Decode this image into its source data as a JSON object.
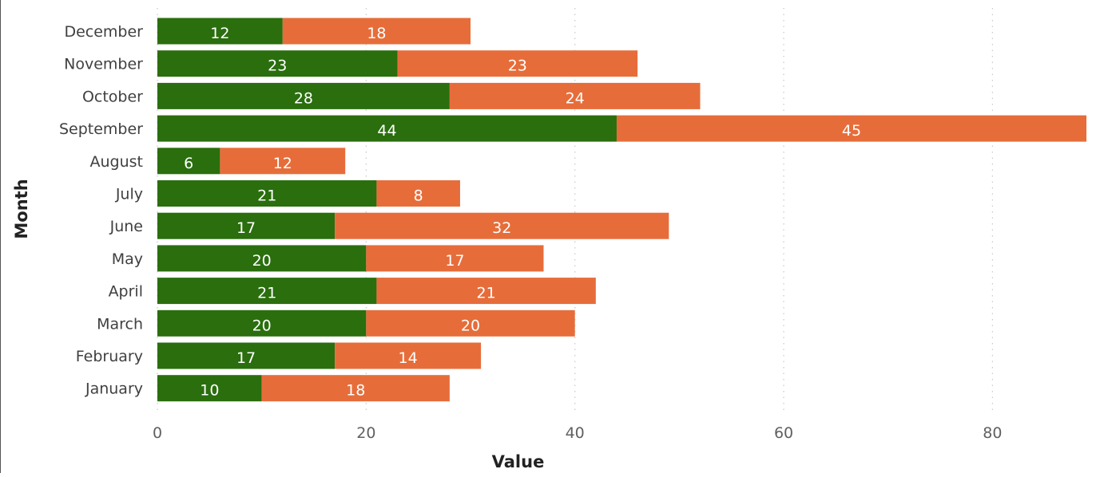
{
  "chart_data": {
    "type": "bar",
    "orientation": "horizontal",
    "stacked": true,
    "categories": [
      "December",
      "November",
      "October",
      "September",
      "August",
      "July",
      "June",
      "May",
      "April",
      "March",
      "February",
      "January"
    ],
    "series": [
      {
        "values": [
          12,
          23,
          28,
          44,
          6,
          21,
          17,
          20,
          21,
          20,
          17,
          10
        ],
        "color": "#2a6e0e"
      },
      {
        "values": [
          18,
          23,
          24,
          45,
          12,
          8,
          32,
          17,
          21,
          20,
          14,
          18
        ],
        "color": "#e66d3a"
      }
    ],
    "xlabel": "Value",
    "ylabel": "Month",
    "xlim": [
      0,
      89
    ],
    "xticks": [
      0,
      20,
      40,
      60,
      80
    ],
    "grid": "vertical-dotted",
    "legend": "none",
    "data_labels": true
  }
}
